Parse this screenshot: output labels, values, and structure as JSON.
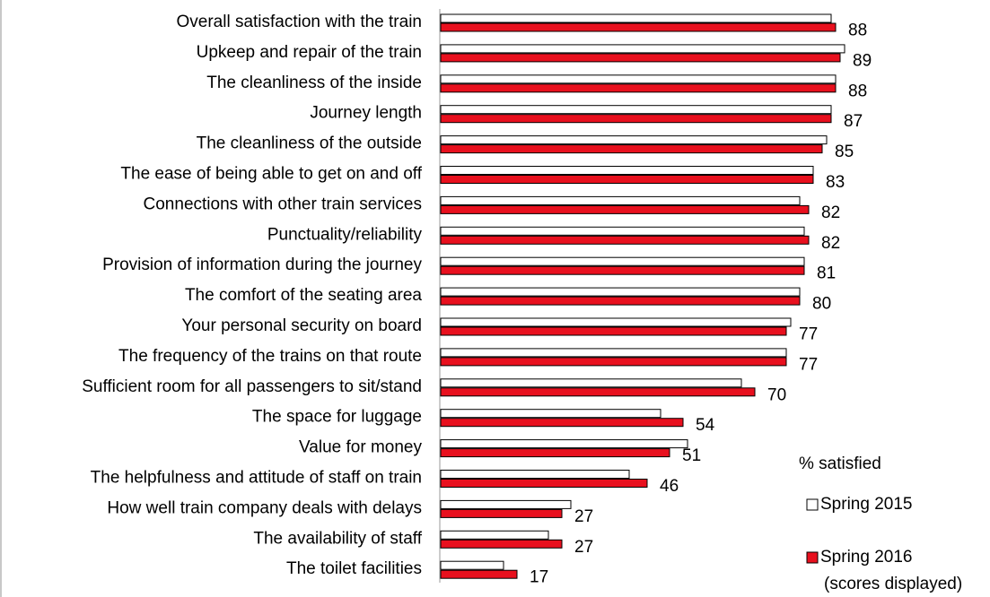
{
  "chart_data": {
    "type": "bar",
    "orientation": "horizontal",
    "categories": [
      "Overall satisfaction with the train",
      "Upkeep and repair of the train",
      "The cleanliness of the inside",
      "Journey length",
      "The cleanliness of the outside",
      "The ease of being able to get on and off",
      "Connections with other train services",
      "Punctuality/reliability",
      "Provision of information during the journey",
      "The comfort of the seating area",
      "Your personal security on board",
      "The frequency of the trains on that route",
      "Sufficient room for all passengers to sit/stand",
      "The space for luggage",
      "Value for money",
      "The helpfulness and attitude of staff on train",
      "How well train company deals with delays",
      "The availability of staff",
      "The toilet facilities"
    ],
    "series": [
      {
        "name": "Spring 2015",
        "color": "#ffffff",
        "values": [
          87,
          90,
          88,
          87,
          86,
          83,
          80,
          81,
          81,
          80,
          78,
          77,
          67,
          49,
          55,
          42,
          29,
          24,
          14
        ]
      },
      {
        "name": "Spring 2016",
        "color": "#e8101e",
        "values": [
          88,
          89,
          88,
          87,
          85,
          83,
          82,
          82,
          81,
          80,
          77,
          77,
          70,
          54,
          51,
          46,
          27,
          27,
          17
        ]
      }
    ],
    "data_labels_series": 1,
    "legend_title": "% satisfied",
    "legend_note": "(scores displayed)"
  }
}
